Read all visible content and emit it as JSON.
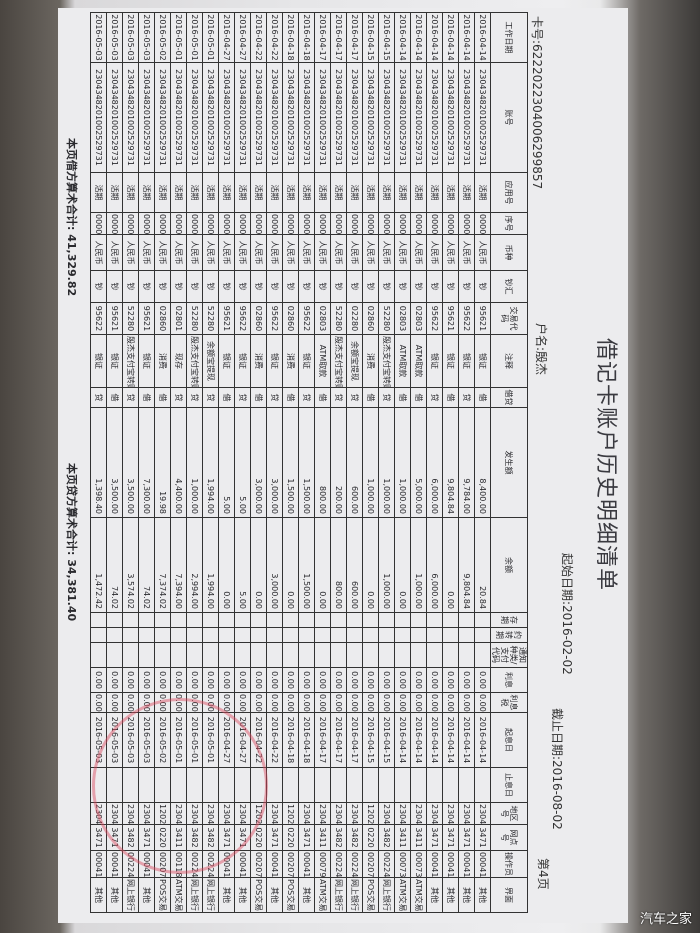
{
  "header": {
    "title": "借记卡账户历史明细清单",
    "card_no": "卡号:6222022304006299857",
    "account_name": "户名:殷杰",
    "start_date": "起始日期:2016-02-02",
    "end_date": "截止日期:2016-08-02",
    "page": "第4页"
  },
  "columns": [
    "工作日期",
    "账号",
    "应用号",
    "序号",
    "币种",
    "钞汇",
    "交易代码",
    "注释",
    "借贷",
    "发生额",
    "余额",
    "存期",
    "约转期",
    "通知种类/支付代码",
    "利息",
    "利息税",
    "起息日",
    "止息日",
    "地区号",
    "网点号",
    "操作员",
    "界面"
  ],
  "rows": [
    [
      "2016-04-14",
      "2304348201002529731",
      "活期",
      "00000",
      "人民币",
      "钞",
      "95621",
      "银证",
      "借",
      "8,400.00",
      "20.84",
      "",
      "",
      "",
      "0.00",
      "0.00",
      "2016-04-14",
      "",
      "2304",
      "3471",
      "00041",
      "其他"
    ],
    [
      "2016-04-14",
      "2304348201002529731",
      "活期",
      "00000",
      "人民币",
      "钞",
      "95622",
      "银证",
      "贷",
      "9,784.00",
      "9,804.84",
      "",
      "",
      "",
      "0.00",
      "0.00",
      "2016-04-14",
      "",
      "2304",
      "3471",
      "00041",
      "其他"
    ],
    [
      "2016-04-14",
      "2304348201002529731",
      "活期",
      "00000",
      "人民币",
      "钞",
      "95621",
      "银证",
      "借",
      "9,804.84",
      "0.00",
      "",
      "",
      "",
      "0.00",
      "0.00",
      "2016-04-14",
      "",
      "2304",
      "3471",
      "00041",
      "其他"
    ],
    [
      "2016-04-14",
      "2304348201002529731",
      "活期",
      "00000",
      "人民币",
      "钞",
      "95622",
      "银证",
      "贷",
      "6,000.00",
      "6,000.00",
      "",
      "",
      "",
      "0.00",
      "0.00",
      "2016-04-14",
      "",
      "2304",
      "3471",
      "00041",
      "其他"
    ],
    [
      "2016-04-14",
      "2304348201002529731",
      "活期",
      "00000",
      "人民币",
      "钞",
      "02803",
      "ATM取款",
      "借",
      "5,000.00",
      "1,000.00",
      "",
      "",
      "",
      "0.00",
      "0.00",
      "2016-04-14",
      "",
      "2304",
      "3411",
      "00073",
      "ATM交易"
    ],
    [
      "2016-04-14",
      "2304348201002529731",
      "活期",
      "00000",
      "人民币",
      "钞",
      "02803",
      "ATM取款",
      "借",
      "1,000.00",
      "0.00",
      "",
      "",
      "",
      "0.00",
      "0.00",
      "2016-04-14",
      "",
      "2304",
      "3411",
      "00073",
      "ATM交易"
    ],
    [
      "2016-04-15",
      "2304348201002529731",
      "活期",
      "00000",
      "人民币",
      "钞",
      "52280",
      "殷杰支付宝转账",
      "贷",
      "1,000.00",
      "1,000.00",
      "",
      "",
      "",
      "0.00",
      "0.00",
      "2016-04-15",
      "",
      "2304",
      "3482",
      "00224",
      "网上银行"
    ],
    [
      "2016-04-15",
      "2304348201002529731",
      "活期",
      "00000",
      "人民币",
      "钞",
      "02860",
      "消费",
      "借",
      "1,000.00",
      "0.00",
      "",
      "",
      "",
      "0.00",
      "0.00",
      "2016-04-15",
      "",
      "1202",
      "0220",
      "00207",
      "POS交易"
    ],
    [
      "2016-04-17",
      "2304348201002529731",
      "活期",
      "00000",
      "人民币",
      "钞",
      "02280",
      "余额宝提现",
      "贷",
      "600.00",
      "600.00",
      "",
      "",
      "",
      "0.00",
      "0.00",
      "2016-04-17",
      "",
      "2304",
      "3482",
      "00224",
      "网上银行"
    ],
    [
      "2016-04-17",
      "2304348201002529731",
      "活期",
      "00000",
      "人民币",
      "钞",
      "52280",
      "殷杰支付宝转账",
      "贷",
      "200.00",
      "800.00",
      "",
      "",
      "",
      "0.00",
      "0.00",
      "2016-04-17",
      "",
      "2304",
      "3482",
      "00224",
      "网上银行"
    ],
    [
      "2016-04-17",
      "2304348201002529731",
      "活期",
      "00000",
      "人民币",
      "钞",
      "02803",
      "ATM取款",
      "借",
      "800.00",
      "0.00",
      "",
      "",
      "",
      "0.00",
      "0.00",
      "2016-04-17",
      "",
      "2304",
      "3411",
      "00079",
      "ATM交易"
    ],
    [
      "2016-04-18",
      "2304348201002529731",
      "活期",
      "00000",
      "人民币",
      "钞",
      "95622",
      "银证",
      "贷",
      "1,500.00",
      "1,500.00",
      "",
      "",
      "",
      "0.00",
      "0.00",
      "2016-04-18",
      "",
      "2304",
      "3471",
      "00041",
      "其他"
    ],
    [
      "2016-04-18",
      "2304348201002529731",
      "活期",
      "00000",
      "人民币",
      "钞",
      "02860",
      "消费",
      "借",
      "1,500.00",
      "0.00",
      "",
      "",
      "",
      "0.00",
      "0.00",
      "2016-04-18",
      "",
      "1202",
      "0220",
      "00207",
      "POS交易"
    ],
    [
      "2016-04-22",
      "2304348201002529731",
      "活期",
      "00000",
      "人民币",
      "钞",
      "95622",
      "银证",
      "贷",
      "3,000.00",
      "3,000.00",
      "",
      "",
      "",
      "0.00",
      "0.00",
      "2016-04-22",
      "",
      "2304",
      "3471",
      "00041",
      "其他"
    ],
    [
      "2016-04-22",
      "2304348201002529731",
      "活期",
      "00000",
      "人民币",
      "钞",
      "02860",
      "消费",
      "借",
      "3,000.00",
      "0.00",
      "",
      "",
      "",
      "0.00",
      "0.00",
      "2016-04-22",
      "",
      "1202",
      "0220",
      "00207",
      "POS交易"
    ],
    [
      "2016-04-27",
      "2304348201002529731",
      "活期",
      "00000",
      "人民币",
      "钞",
      "95622",
      "银证",
      "贷",
      "5.00",
      "5.00",
      "",
      "",
      "",
      "0.00",
      "0.00",
      "2016-04-27",
      "",
      "2304",
      "3471",
      "00041",
      "其他"
    ],
    [
      "2016-04-27",
      "2304348201002529731",
      "活期",
      "00000",
      "人民币",
      "钞",
      "95621",
      "银证",
      "借",
      "5.00",
      "0.00",
      "",
      "",
      "",
      "0.00",
      "0.00",
      "2016-04-27",
      "",
      "2304",
      "3471",
      "00041",
      "其他"
    ],
    [
      "2016-05-01",
      "2304348201002529731",
      "活期",
      "00000",
      "人民币",
      "钞",
      "52280",
      "余额宝提现",
      "贷",
      "1,994.00",
      "1,994.00",
      "",
      "",
      "",
      "0.00",
      "0.00",
      "2016-05-01",
      "",
      "2304",
      "3482",
      "00224",
      "网上银行"
    ],
    [
      "2016-05-01",
      "2304348201002529731",
      "活期",
      "00000",
      "人民币",
      "钞",
      "52280",
      "殷杰支付宝转账",
      "贷",
      "1,000.00",
      "2,994.00",
      "",
      "",
      "",
      "0.00",
      "0.00",
      "2016-05-01",
      "",
      "2304",
      "3482",
      "00224",
      "网上银行"
    ],
    [
      "2016-05-01",
      "2304348201002529731",
      "活期",
      "00000",
      "人民币",
      "钞",
      "02801",
      "现存",
      "贷",
      "4,400.00",
      "7,394.00",
      "",
      "",
      "",
      "0.00",
      "0.00",
      "2016-05-01",
      "",
      "2304",
      "3411",
      "00118",
      "ATM交易"
    ],
    [
      "2016-05-02",
      "2304348201002529731",
      "活期",
      "00000",
      "人民币",
      "钞",
      "02860",
      "消费",
      "借",
      "19.98",
      "7,374.02",
      "",
      "",
      "",
      "0.00",
      "0.00",
      "2016-05-02",
      "",
      "1202",
      "0220",
      "00207",
      "POS交易"
    ],
    [
      "2016-05-03",
      "2304348201002529731",
      "活期",
      "00000",
      "人民币",
      "钞",
      "95621",
      "银证",
      "借",
      "7,300.00",
      "74.02",
      "",
      "",
      "",
      "0.00",
      "0.00",
      "2016-05-03",
      "",
      "2304",
      "3471",
      "00041",
      "其他"
    ],
    [
      "2016-05-03",
      "2304348201002529731",
      "活期",
      "00000",
      "人民币",
      "钞",
      "52280",
      "殷杰支付宝转账",
      "贷",
      "3,500.00",
      "3,574.02",
      "",
      "",
      "",
      "0.00",
      "0.00",
      "2016-05-03",
      "",
      "2304",
      "3482",
      "00224",
      "网上银行"
    ],
    [
      "2016-05-03",
      "2304348201002529731",
      "活期",
      "00000",
      "人民币",
      "钞",
      "95621",
      "银证",
      "借",
      "3,500.00",
      "74.02",
      "",
      "",
      "",
      "0.00",
      "0.00",
      "2016-05-03",
      "",
      "2304",
      "3471",
      "00041",
      "其他"
    ],
    [
      "2016-05-03",
      "2304348201002529731",
      "活期",
      "00000",
      "人民币",
      "钞",
      "95622",
      "银证",
      "贷",
      "1,398.40",
      "1,472.42",
      "",
      "",
      "",
      "0.00",
      "0.00",
      "2016-05-03",
      "",
      "2304",
      "3471",
      "00041",
      "其他"
    ]
  ],
  "footer": {
    "debit_total": "本页借方算术合计: 41,329.82",
    "credit_total": "本页贷方算术合计: 34,381.40"
  },
  "watermark": "汽车之家"
}
